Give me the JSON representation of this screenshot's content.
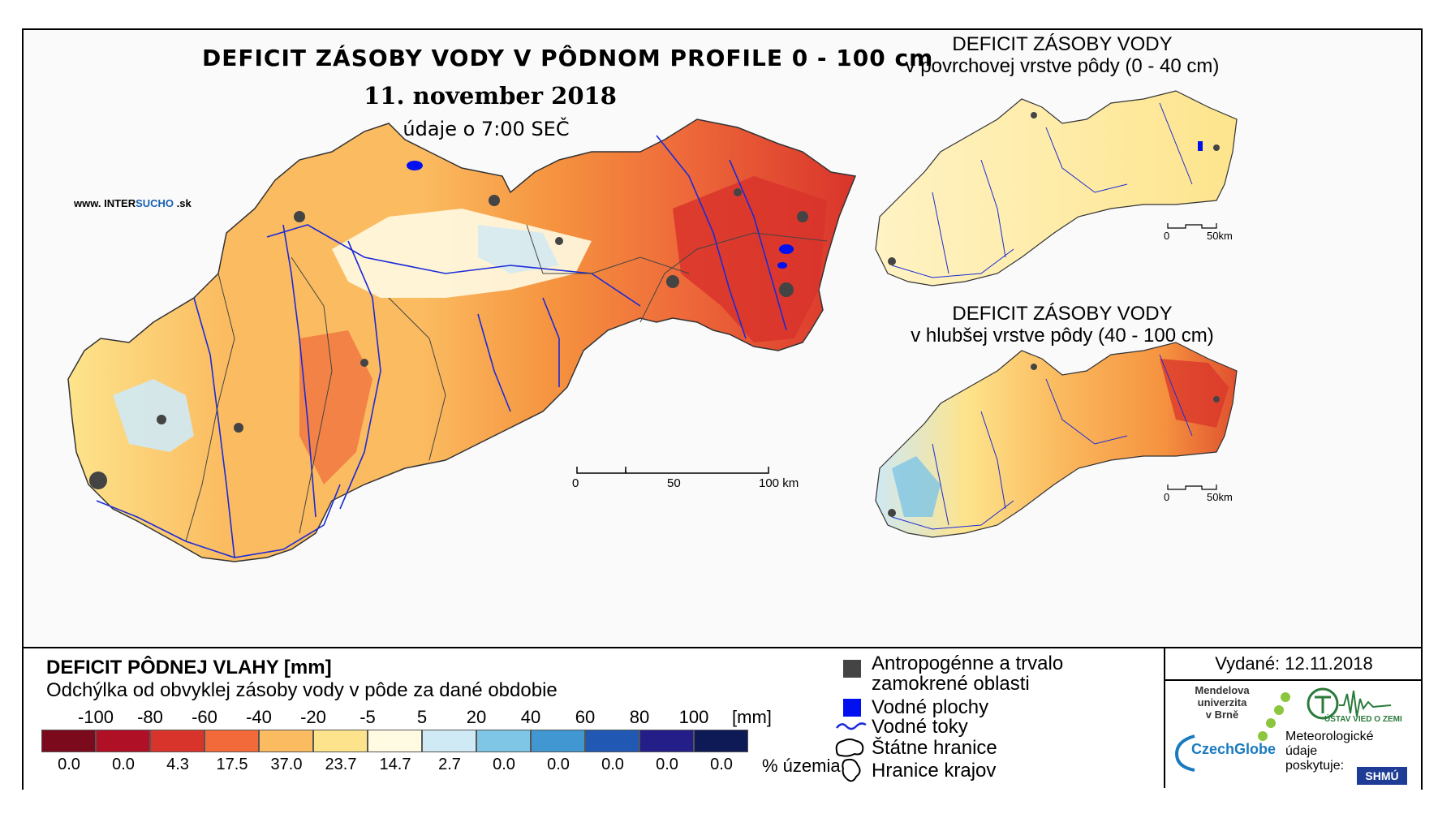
{
  "main": {
    "title": "DEFICIT ZÁSOBY VODY V PÔDNOM PROFILE 0 - 100 cm",
    "date": "11. november 2018",
    "time": "údaje o 7:00 SEČ",
    "site_prefix": "www. INTER",
    "site_highlight": "SUCHO",
    "site_suffix": " .sk",
    "scale": {
      "zero": "0",
      "mid": "50",
      "end": "100 km"
    }
  },
  "inset_top": {
    "title_line1": "DEFICIT ZÁSOBY VODY",
    "title_line2": "v povrchovej vrstve pôdy (0 - 40 cm)",
    "scale": {
      "zero": "0",
      "end": "50km"
    }
  },
  "inset_bottom": {
    "title_line1": "DEFICIT ZÁSOBY VODY",
    "title_line2": "v hlubšej vrstve pôdy (40 - 100 cm)",
    "scale": {
      "zero": "0",
      "end": "50km"
    }
  },
  "legend": {
    "title": "DEFICIT PÔDNEJ VLAHY [mm]",
    "subtitle": "Odchýlka od obvyklej zásoby vody v pôde za dané obdobie",
    "unit": "[mm]",
    "pct_unit": "% územia",
    "ticks": [
      "-100",
      "-80",
      "-60",
      "-40",
      "-20",
      "-5",
      "5",
      "20",
      "40",
      "60",
      "80",
      "100"
    ],
    "classes": [
      {
        "color": "#7a0a1c",
        "pct": "0.0"
      },
      {
        "color": "#b01025",
        "pct": "0.0"
      },
      {
        "color": "#d9342b",
        "pct": "4.3"
      },
      {
        "color": "#f26a3a",
        "pct": "17.5"
      },
      {
        "color": "#fbbb60",
        "pct": "37.0"
      },
      {
        "color": "#fde48c",
        "pct": "23.7"
      },
      {
        "color": "#fffbe3",
        "pct": "14.7"
      },
      {
        "color": "#cfe9f5",
        "pct": "2.7"
      },
      {
        "color": "#7ec5e6",
        "pct": "0.0"
      },
      {
        "color": "#4197d2",
        "pct": "0.0"
      },
      {
        "color": "#2158b4",
        "pct": "0.0"
      },
      {
        "color": "#241e88",
        "pct": "0.0"
      },
      {
        "color": "#0d1a56",
        "pct": "0.0"
      }
    ]
  },
  "symbols": {
    "anthropogenic_line1": "Antropogénne a trvalo",
    "anthropogenic_line2": "zamokrené oblasti",
    "water_bodies": "Vodné plochy",
    "rivers": "Vodné toky",
    "state_border": "Štátne hranice",
    "region_border": "Hranice krajov",
    "anthropogenic_color": "#444444",
    "water_color": "#0010f0",
    "river_color": "#1a2ad8"
  },
  "info": {
    "issued": "Vydané: 12.11.2018",
    "mendel_line1": "Mendelova",
    "mendel_line2": "univerzita",
    "mendel_line3": "v Brně",
    "czechglobe": "CzechGlobe",
    "ustav": "ÚSTAV VIED O ZEMI",
    "met_line1": "Meteorologické",
    "met_line2": "údaje",
    "met_line3": "poskytuje:",
    "shmu": "SHMÚ"
  }
}
